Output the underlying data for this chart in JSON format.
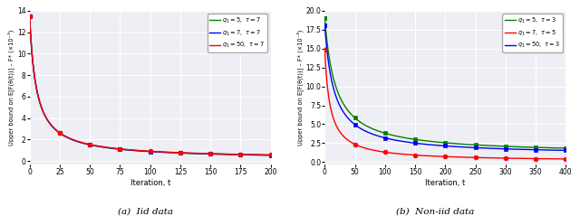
{
  "iid": {
    "xlabel": "Iteration, t",
    "xlim": [
      0,
      200
    ],
    "ylim": [
      -0.3,
      14
    ],
    "yticks": [
      0,
      2,
      4,
      6,
      8,
      10,
      12,
      14
    ],
    "xticks": [
      0,
      25,
      50,
      75,
      100,
      125,
      150,
      175,
      200
    ],
    "series": [
      {
        "label": "$q_1 = 5,\\ \\tau = 7$",
        "color": "green",
        "marker": "s",
        "A": 13.5,
        "decay": 0.18,
        "floor": 0.18
      },
      {
        "label": "$q_1 = 7,\\ \\tau = 7$",
        "color": "blue",
        "marker": "s",
        "A": 13.5,
        "decay": 0.18,
        "floor": 0.2
      },
      {
        "label": "$q_1 = 50,\\ \\tau = 7$",
        "color": "red",
        "marker": "o",
        "A": 13.5,
        "decay": 0.18,
        "floor": 0.22
      }
    ]
  },
  "noniid": {
    "xlabel": "Iteration, t",
    "xlim": [
      0,
      400
    ],
    "ylim": [
      -0.3,
      20
    ],
    "yticks": [
      0.0,
      2.5,
      5.0,
      7.5,
      10.0,
      12.5,
      15.0,
      17.5,
      20.0
    ],
    "xticks": [
      0,
      50,
      100,
      150,
      200,
      250,
      300,
      350,
      400
    ],
    "series": [
      {
        "label": "$q_1 = 5,\\ \\tau = 3$",
        "color": "green",
        "marker": "s",
        "A": 19.0,
        "decay": 0.055,
        "floor": 1.05
      },
      {
        "label": "$q_1 = 7,\\ \\tau = 5$",
        "color": "red",
        "marker": "o",
        "A": 14.8,
        "decay": 0.11,
        "floor": 0.08
      },
      {
        "label": "$q_1 = 50,\\ \\tau = 3$",
        "color": "blue",
        "marker": "s",
        "A": 18.1,
        "decay": 0.065,
        "floor": 0.9
      }
    ]
  },
  "bg_color": "#eeeef5",
  "grid_color": "white",
  "fig_bg": "white",
  "caption_iid": "(a)  Iid data",
  "caption_noniid": "(b)  Non-iid data"
}
